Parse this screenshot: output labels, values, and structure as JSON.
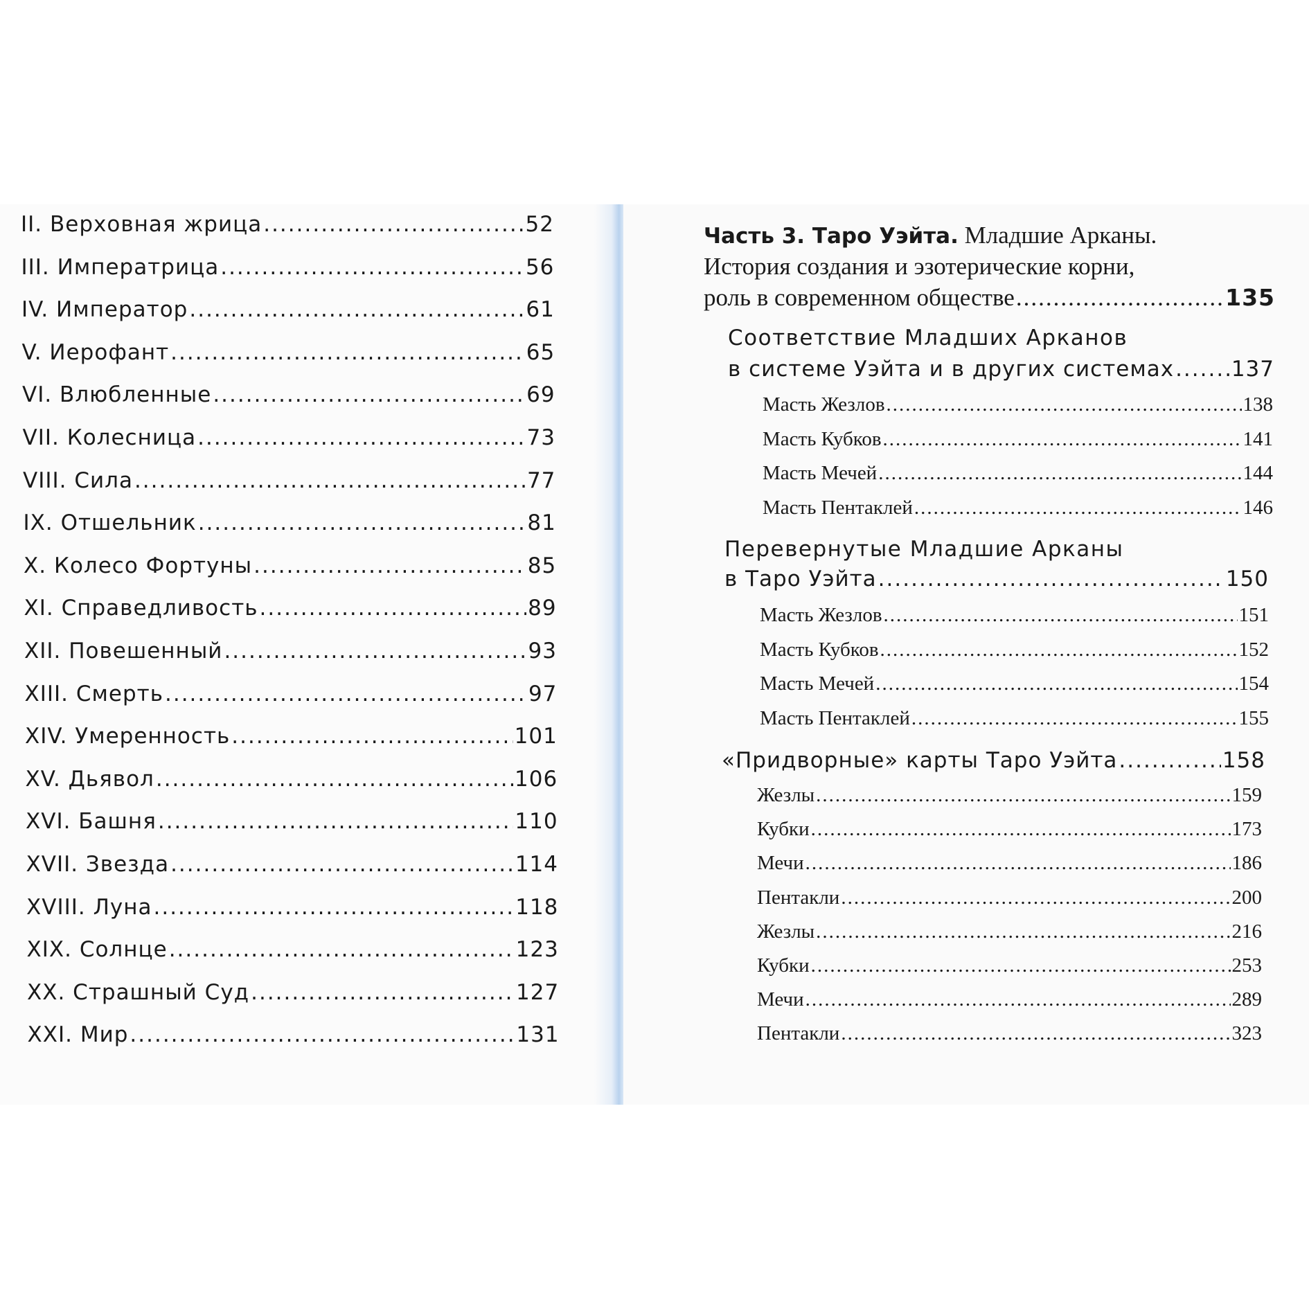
{
  "left_page": {
    "entries": [
      {
        "title": "II. Верховная жрица",
        "page": "52"
      },
      {
        "title": "III. Императрица",
        "page": "56"
      },
      {
        "title": "IV. Император",
        "page": "61"
      },
      {
        "title": "V. Иерофант",
        "page": "65"
      },
      {
        "title": "VI. Влюбленные",
        "page": "69"
      },
      {
        "title": "VII. Колесница",
        "page": "73"
      },
      {
        "title": "VIII. Сила",
        "page": "77"
      },
      {
        "title": "IX. Отшельник",
        "page": "81"
      },
      {
        "title": "X. Колесо Фортуны",
        "page": "85"
      },
      {
        "title": "XI. Справедливость",
        "page": "89"
      },
      {
        "title": "XII. Повешенный",
        "page": "93"
      },
      {
        "title": "XIII. Смерть",
        "page": "97"
      },
      {
        "title": "XIV. Умеренность",
        "page": "101"
      },
      {
        "title": "XV. Дьявол",
        "page": "106"
      },
      {
        "title": "XVI. Башня",
        "page": "110"
      },
      {
        "title": "XVII. Звезда",
        "page": "114"
      },
      {
        "title": "XVIII. Луна",
        "page": "118"
      },
      {
        "title": "XIX. Солнце",
        "page": "123"
      },
      {
        "title": "XX. Страшный Суд",
        "page": "127"
      },
      {
        "title": "XXI. Мир",
        "page": "131"
      }
    ]
  },
  "right_page": {
    "part": {
      "bold": "Часть 3. Таро Уэйта.",
      "line1": "Младшие Арканы.",
      "line2": "История создания и эзотерические корни,",
      "line3": "роль в современном обществе",
      "page": "135"
    },
    "sections": [
      {
        "line1": "Соответствие Младших Арканов",
        "line2": "в системе Уэйта и в других системах",
        "page": "137",
        "items": [
          {
            "title": "Масть Жезлов",
            "page": "138"
          },
          {
            "title": "Масть Кубков",
            "page": "141"
          },
          {
            "title": "Масть Мечей",
            "page": "144"
          },
          {
            "title": "Масть Пентаклей",
            "page": "146"
          }
        ]
      },
      {
        "line1": "Перевернутые Младшие Арканы",
        "line2": "в Таро Уэйта",
        "page": "150",
        "items": [
          {
            "title": "Масть Жезлов",
            "page": "151"
          },
          {
            "title": "Масть Кубков",
            "page": "152"
          },
          {
            "title": "Масть Мечей",
            "page": "154"
          },
          {
            "title": "Масть Пентаклей",
            "page": "155"
          }
        ]
      },
      {
        "line1": "",
        "line2": "«Придворные» карты Таро Уэйта",
        "page": "158",
        "items": [
          {
            "title": "Жезлы",
            "page": "159"
          },
          {
            "title": "Кубки",
            "page": "173"
          },
          {
            "title": "Мечи",
            "page": "186"
          },
          {
            "title": "Пентакли",
            "page": "200"
          },
          {
            "title": "Жезлы",
            "page": "216"
          },
          {
            "title": "Кубки",
            "page": "253"
          },
          {
            "title": "Мечи",
            "page": "289"
          },
          {
            "title": "Пентакли",
            "page": "323"
          }
        ]
      }
    ]
  }
}
